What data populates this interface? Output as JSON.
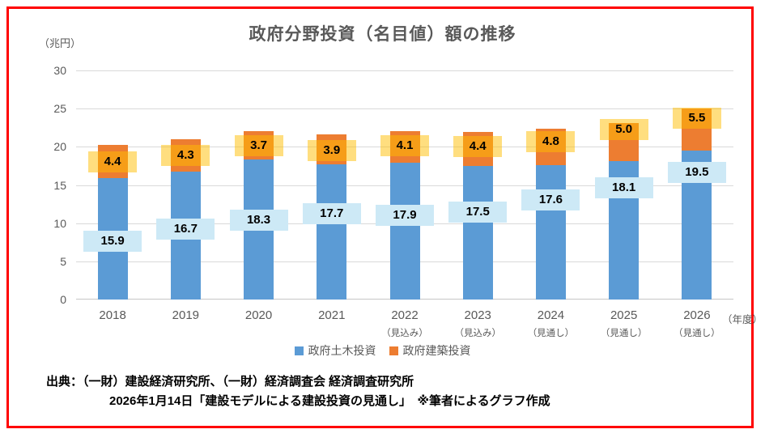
{
  "title": "政府分野投資（名目値）額の推移",
  "y_axis_unit": "（兆円）",
  "x_axis_unit": "（年度）",
  "source": {
    "line1": "出典：（一財）建設経済研究所、（一財）経済調査会 経済調査研究所",
    "line2": "2026年1月14日「建設モデルによる建設投資の見通し」　※筆者によるグラフ作成"
  },
  "colors": {
    "frame_border": "#FF0000",
    "grid_line": "#D9D9D9",
    "axis_line": "#C6C6C6",
    "axis_text": "#595959",
    "title_text": "#595959",
    "civil_series": "#5B9BD5",
    "building_series": "#ED7D31",
    "civil_label_bg": "#CDE9F6",
    "building_label_bg": "rgba(255,190,0,0.5)",
    "data_label_text": "#000000"
  },
  "chart_data": {
    "type": "bar",
    "stacked": true,
    "title": "政府分野投資（名目値）額の推移",
    "ylabel": "（兆円）",
    "xlabel": "（年度）",
    "ylim": [
      0,
      30
    ],
    "ytick_step": 5,
    "grid": true,
    "legend_position": "bottom",
    "categories": [
      "2018",
      "2019",
      "2020",
      "2021",
      "2022",
      "2023",
      "2024",
      "2025",
      "2026"
    ],
    "category_sublabels": [
      "",
      "",
      "",
      "",
      "（見込み）",
      "（見込み）",
      "（見通し）",
      "（見通し）",
      "（見通し）"
    ],
    "series": [
      {
        "name": "政府土木投資",
        "color": "#5B9BD5",
        "values": [
          15.9,
          16.7,
          18.3,
          17.7,
          17.9,
          17.5,
          17.6,
          18.1,
          19.5
        ],
        "label_center_y": [
          7.6,
          9.2,
          10.4,
          11.2,
          11.0,
          11.4,
          13.0,
          14.6,
          16.6
        ]
      },
      {
        "name": "政府建築投資",
        "color": "#ED7D31",
        "values": [
          4.4,
          4.3,
          3.7,
          3.9,
          4.1,
          4.4,
          4.8,
          5.0,
          5.5
        ],
        "label_center_y": [
          18.0,
          18.9,
          20.1,
          19.5,
          20.1,
          20.0,
          20.7,
          22.3,
          23.7
        ]
      }
    ]
  }
}
